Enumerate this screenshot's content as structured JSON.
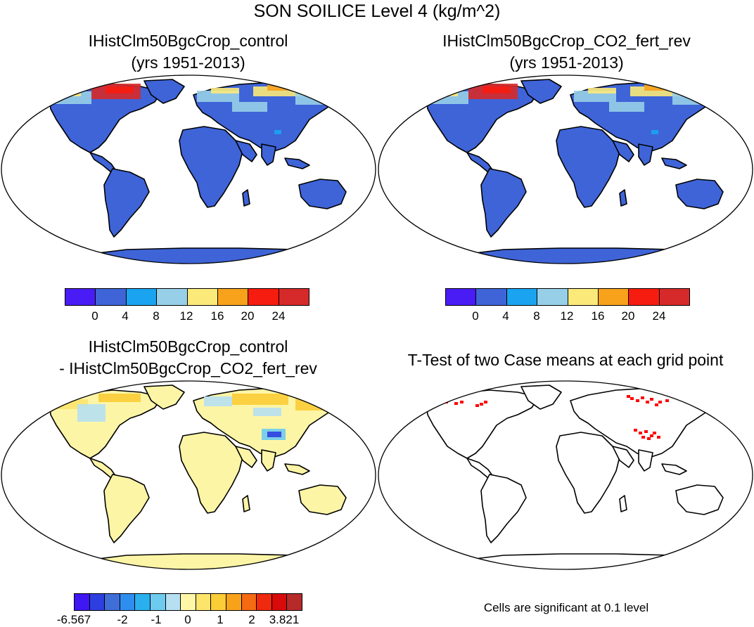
{
  "figure": {
    "title": "SON SOILICE Level 4 (kg/m^2)",
    "panels": [
      {
        "id": "a",
        "title_line1": "IHistClm50BgcCrop_control",
        "title_line2": "(yrs 1951-2013)"
      },
      {
        "id": "b",
        "title_line1": "IHistClm50BgcCrop_CO2_fert_rev",
        "title_line2": "(yrs 1951-2013)"
      },
      {
        "id": "c",
        "title_line1": "IHistClm50BgcCrop_control",
        "title_line2": "- IHistClm50BgcCrop_CO2_fert_rev"
      },
      {
        "id": "d",
        "title_line1": "T-Test of two Case means at each grid point",
        "title_line2": ""
      }
    ],
    "colorbar_abs": {
      "colors": [
        "#4a1cf5",
        "#3e64d8",
        "#1aa4f0",
        "#97cfe8",
        "#fbe97a",
        "#f8a21c",
        "#f71c10",
        "#d62a2a"
      ],
      "labels": [
        "0",
        "4",
        "8",
        "12",
        "16",
        "20",
        "24"
      ]
    },
    "colorbar_diff": {
      "colors": [
        "#3f17f3",
        "#2d3fe0",
        "#3f6ed8",
        "#2e8ef0",
        "#2bb0ef",
        "#6ecbf0",
        "#b6e0f2",
        "#fff6a8",
        "#fde46b",
        "#fbcd36",
        "#f8a21c",
        "#f66a12",
        "#ef2a0e",
        "#d80a0a",
        "#b62a2a"
      ],
      "labels": [
        "-6.567",
        "-2",
        "-1",
        "0",
        "1",
        "2",
        "3.821"
      ]
    },
    "significance_note": "Cells are significant at 0.1 level",
    "colors": {
      "land_abs": "#3e64d8",
      "land_diff": "#fdf5a6",
      "ttest_sig": "#ff0000",
      "coast": "#000000"
    }
  }
}
